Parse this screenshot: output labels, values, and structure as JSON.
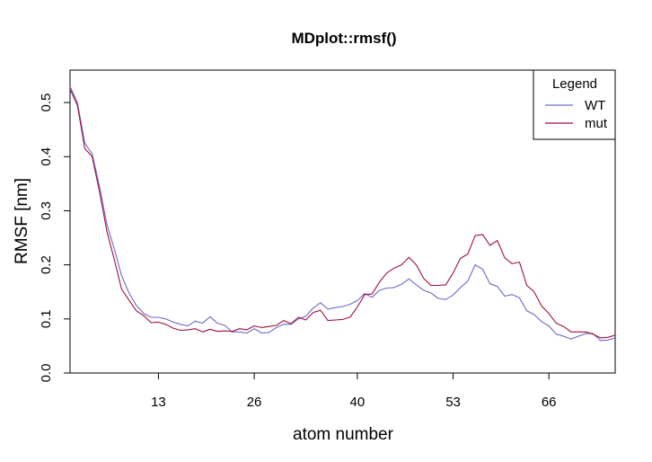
{
  "chart_data": {
    "type": "line",
    "title": "MDplot::rmsf()",
    "xlabel": "atom number",
    "ylabel": "RMSF [nm]",
    "xlim": [
      1,
      75
    ],
    "ylim": [
      0,
      0.56
    ],
    "x_ticks": [
      13,
      26,
      40,
      53,
      66
    ],
    "y_ticks": [
      0.0,
      0.1,
      0.2,
      0.3,
      0.4,
      0.5
    ],
    "y_tick_labels": [
      "0.0",
      "0.1",
      "0.2",
      "0.3",
      "0.4",
      "0.5"
    ],
    "grid": false,
    "legend": {
      "title": "Legend",
      "position": "top-right"
    },
    "series": [
      {
        "name": "WT",
        "color": "#6a6ac8",
        "x": [
          1,
          2,
          3,
          4,
          5,
          6,
          7,
          8,
          9,
          10,
          11,
          12,
          13,
          14,
          15,
          16,
          17,
          18,
          19,
          20,
          21,
          22,
          23,
          24,
          25,
          26,
          27,
          28,
          29,
          30,
          31,
          32,
          33,
          34,
          35,
          36,
          37,
          38,
          39,
          40,
          41,
          42,
          43,
          44,
          45,
          46,
          47,
          48,
          49,
          50,
          51,
          52,
          53,
          54,
          55,
          56,
          57,
          58,
          59,
          60,
          61,
          62,
          63,
          64,
          65,
          66,
          67,
          68,
          69,
          70,
          71,
          72,
          73,
          74,
          75
        ],
        "values": [
          0.53,
          0.5,
          0.425,
          0.405,
          0.345,
          0.275,
          0.23,
          0.18,
          0.148,
          0.125,
          0.11,
          0.103,
          0.103,
          0.1,
          0.094,
          0.09,
          0.087,
          0.096,
          0.092,
          0.104,
          0.092,
          0.088,
          0.076,
          0.076,
          0.074,
          0.082,
          0.074,
          0.075,
          0.084,
          0.09,
          0.09,
          0.1,
          0.105,
          0.12,
          0.13,
          0.118,
          0.121,
          0.123,
          0.127,
          0.134,
          0.147,
          0.14,
          0.153,
          0.157,
          0.158,
          0.164,
          0.174,
          0.163,
          0.153,
          0.148,
          0.138,
          0.136,
          0.144,
          0.158,
          0.17,
          0.2,
          0.192,
          0.165,
          0.16,
          0.142,
          0.145,
          0.139,
          0.115,
          0.108,
          0.095,
          0.087,
          0.072,
          0.068,
          0.063,
          0.068,
          0.073,
          0.073,
          0.06,
          0.061,
          0.065
        ]
      },
      {
        "name": "mut",
        "color": "#a0103a",
        "x": [
          1,
          2,
          3,
          4,
          5,
          6,
          7,
          8,
          9,
          10,
          11,
          12,
          13,
          14,
          15,
          16,
          17,
          18,
          19,
          20,
          21,
          22,
          23,
          24,
          25,
          26,
          27,
          28,
          29,
          30,
          31,
          32,
          33,
          34,
          35,
          36,
          37,
          38,
          39,
          40,
          41,
          42,
          43,
          44,
          45,
          46,
          47,
          48,
          49,
          50,
          51,
          52,
          53,
          54,
          55,
          56,
          57,
          58,
          59,
          60,
          61,
          62,
          63,
          64,
          65,
          66,
          67,
          68,
          69,
          70,
          71,
          72,
          73,
          74,
          75
        ],
        "values": [
          0.525,
          0.495,
          0.415,
          0.4,
          0.335,
          0.262,
          0.21,
          0.155,
          0.135,
          0.115,
          0.106,
          0.093,
          0.094,
          0.09,
          0.083,
          0.079,
          0.08,
          0.082,
          0.076,
          0.081,
          0.077,
          0.078,
          0.077,
          0.082,
          0.08,
          0.087,
          0.084,
          0.086,
          0.088,
          0.097,
          0.091,
          0.103,
          0.098,
          0.112,
          0.116,
          0.097,
          0.098,
          0.099,
          0.103,
          0.122,
          0.145,
          0.146,
          0.168,
          0.185,
          0.194,
          0.2,
          0.214,
          0.2,
          0.175,
          0.162,
          0.162,
          0.163,
          0.185,
          0.212,
          0.22,
          0.254,
          0.256,
          0.236,
          0.245,
          0.213,
          0.202,
          0.205,
          0.162,
          0.15,
          0.124,
          0.11,
          0.092,
          0.086,
          0.076,
          0.076,
          0.076,
          0.072,
          0.065,
          0.066,
          0.07
        ]
      }
    ]
  }
}
